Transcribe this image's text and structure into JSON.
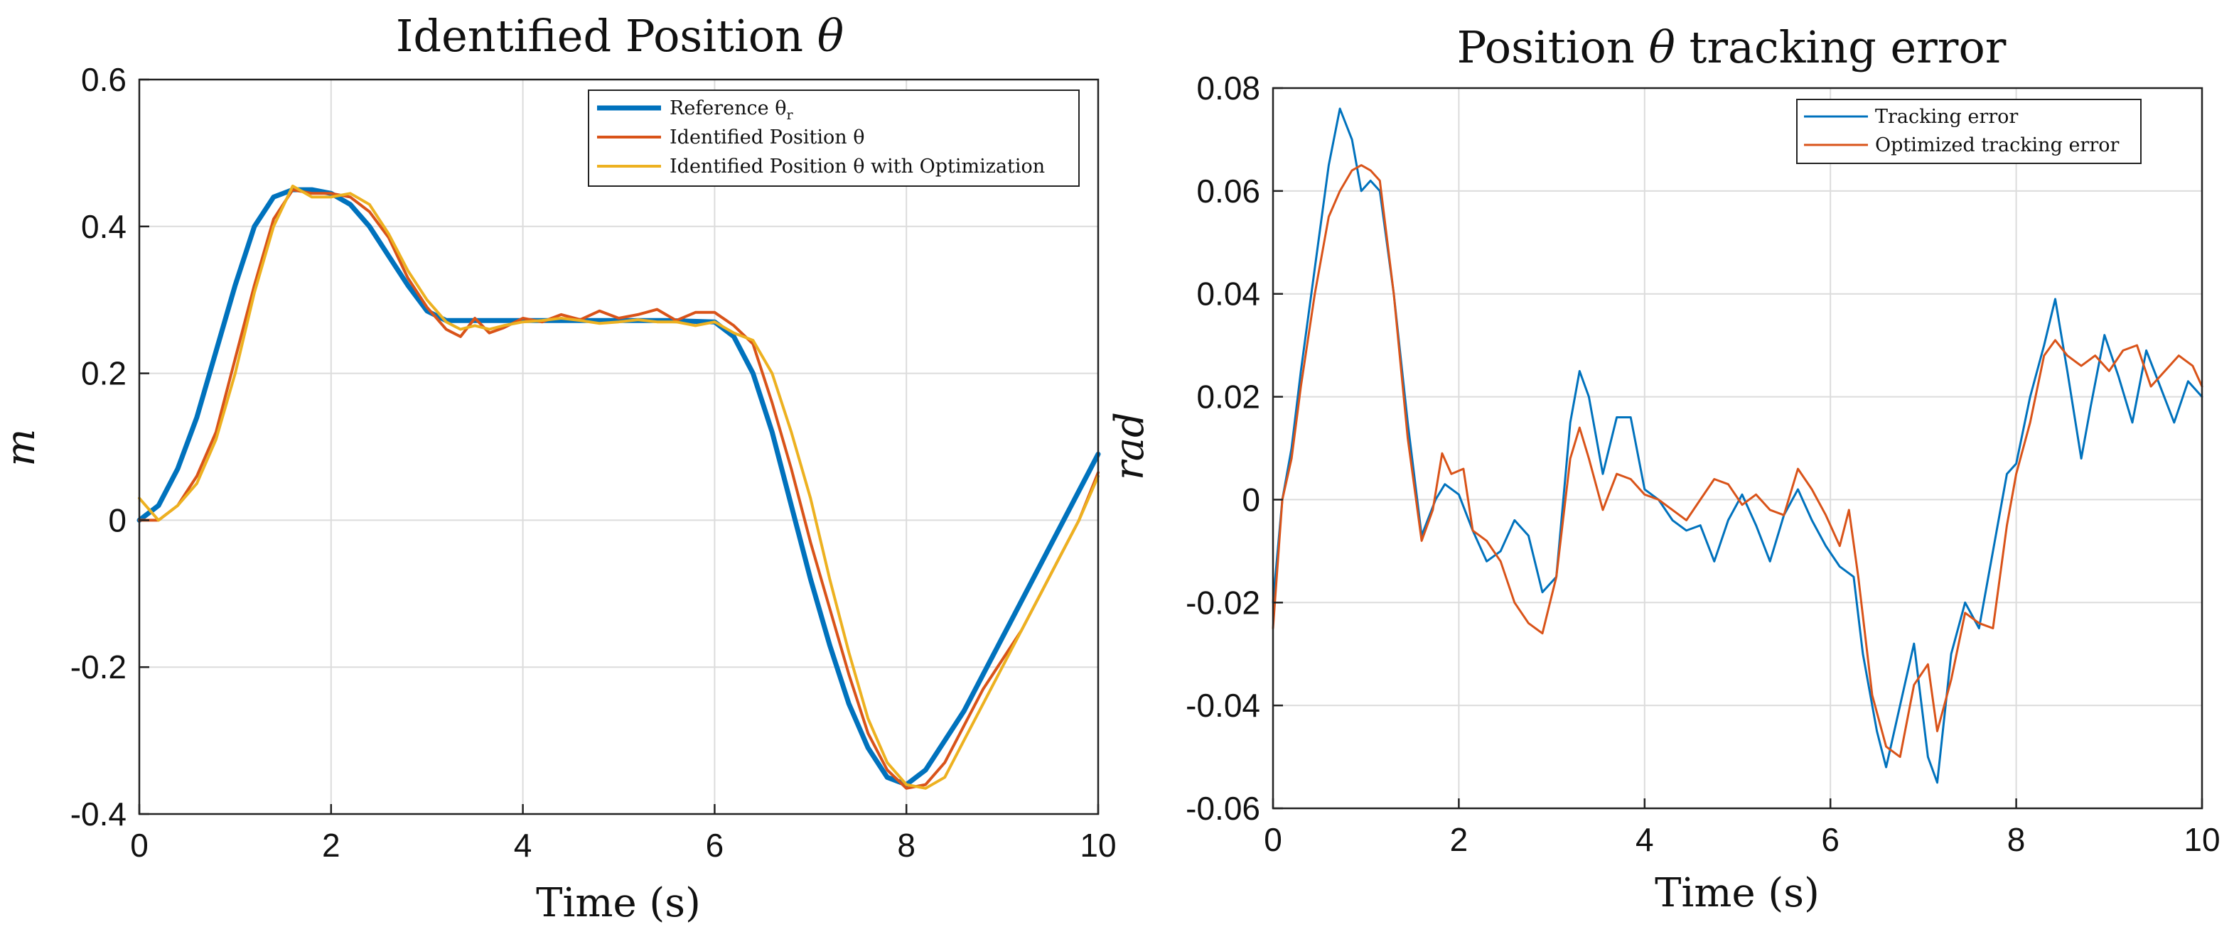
{
  "chart_data": [
    {
      "type": "line",
      "title": "Identified Position θ",
      "title_plain": "Identified Position ",
      "title_symbol": "θ",
      "xlabel": "Time (s)",
      "ylabel": "m",
      "xlim": [
        0,
        10
      ],
      "ylim": [
        -0.4,
        0.6
      ],
      "xticks": [
        "0",
        "2",
        "4",
        "6",
        "8",
        "10"
      ],
      "yticks": [
        "-0.4",
        "-0.2",
        "0",
        "0.2",
        "0.4",
        "0.6"
      ],
      "grid": true,
      "legend_position": "top-right",
      "series": [
        {
          "name": "Reference θr",
          "legend_label": "Reference θ",
          "legend_sub": "r",
          "color": "#0072BD",
          "x": [
            0,
            0.2,
            0.4,
            0.6,
            0.8,
            1.0,
            1.2,
            1.4,
            1.6,
            1.8,
            2.0,
            2.2,
            2.4,
            2.6,
            2.8,
            3.0,
            3.2,
            3.5,
            4.0,
            4.5,
            5.0,
            5.5,
            6.0,
            6.2,
            6.4,
            6.6,
            6.8,
            7.0,
            7.2,
            7.4,
            7.6,
            7.8,
            8.0,
            8.2,
            8.4,
            8.6,
            8.8,
            9.0,
            9.2,
            9.4,
            9.6,
            9.8,
            10.0
          ],
          "y": [
            0,
            0.02,
            0.07,
            0.14,
            0.23,
            0.32,
            0.4,
            0.44,
            0.45,
            0.45,
            0.445,
            0.43,
            0.4,
            0.36,
            0.32,
            0.285,
            0.272,
            0.272,
            0.272,
            0.272,
            0.272,
            0.272,
            0.27,
            0.25,
            0.2,
            0.12,
            0.02,
            -0.08,
            -0.17,
            -0.25,
            -0.31,
            -0.35,
            -0.36,
            -0.34,
            -0.3,
            -0.26,
            -0.21,
            -0.16,
            -0.11,
            -0.06,
            -0.01,
            0.04,
            0.09
          ]
        },
        {
          "name": "Identified Position θ",
          "legend_label": "Identified Position θ",
          "color": "#D95319",
          "x": [
            0,
            0.2,
            0.4,
            0.6,
            0.8,
            1.0,
            1.2,
            1.4,
            1.6,
            1.8,
            2.0,
            2.2,
            2.4,
            2.6,
            2.8,
            3.0,
            3.2,
            3.35,
            3.5,
            3.65,
            3.8,
            4.0,
            4.2,
            4.4,
            4.6,
            4.8,
            5.0,
            5.2,
            5.4,
            5.6,
            5.8,
            6.0,
            6.2,
            6.4,
            6.6,
            6.8,
            7.0,
            7.2,
            7.4,
            7.6,
            7.8,
            8.0,
            8.2,
            8.4,
            8.6,
            8.8,
            9.0,
            9.2,
            9.4,
            9.6,
            9.8,
            10.0
          ],
          "y": [
            0,
            0.0,
            0.02,
            0.06,
            0.12,
            0.22,
            0.32,
            0.41,
            0.45,
            0.445,
            0.445,
            0.44,
            0.42,
            0.385,
            0.33,
            0.29,
            0.26,
            0.25,
            0.275,
            0.255,
            0.262,
            0.275,
            0.27,
            0.28,
            0.273,
            0.285,
            0.275,
            0.28,
            0.287,
            0.272,
            0.283,
            0.283,
            0.265,
            0.24,
            0.16,
            0.07,
            -0.03,
            -0.12,
            -0.21,
            -0.29,
            -0.34,
            -0.365,
            -0.36,
            -0.33,
            -0.28,
            -0.23,
            -0.19,
            -0.15,
            -0.1,
            -0.05,
            0.0,
            0.065
          ]
        },
        {
          "name": "Identified Position θ with Optimization",
          "legend_label": "Identified Position θ with Optimization",
          "color": "#EDB120",
          "x": [
            0,
            0.2,
            0.4,
            0.6,
            0.8,
            1.0,
            1.2,
            1.4,
            1.6,
            1.8,
            2.0,
            2.2,
            2.4,
            2.6,
            2.8,
            3.0,
            3.2,
            3.35,
            3.5,
            3.65,
            3.8,
            4.0,
            4.2,
            4.4,
            4.6,
            4.8,
            5.0,
            5.2,
            5.4,
            5.6,
            5.8,
            6.0,
            6.2,
            6.4,
            6.6,
            6.8,
            7.0,
            7.2,
            7.4,
            7.6,
            7.8,
            8.0,
            8.2,
            8.4,
            8.6,
            8.8,
            9.0,
            9.2,
            9.4,
            9.6,
            9.8,
            10.0
          ],
          "y": [
            0.03,
            0.0,
            0.02,
            0.05,
            0.11,
            0.2,
            0.31,
            0.4,
            0.455,
            0.44,
            0.44,
            0.445,
            0.43,
            0.39,
            0.34,
            0.3,
            0.27,
            0.26,
            0.265,
            0.26,
            0.265,
            0.27,
            0.272,
            0.275,
            0.272,
            0.268,
            0.27,
            0.273,
            0.27,
            0.27,
            0.265,
            0.27,
            0.255,
            0.245,
            0.2,
            0.12,
            0.03,
            -0.08,
            -0.18,
            -0.27,
            -0.33,
            -0.36,
            -0.365,
            -0.35,
            -0.3,
            -0.25,
            -0.2,
            -0.15,
            -0.1,
            -0.05,
            0.0,
            0.06
          ]
        }
      ]
    },
    {
      "type": "line",
      "title": "Position θ tracking error",
      "title_pre": "Position ",
      "title_symbol": "θ",
      "title_post": " tracking error",
      "xlabel": "Time (s)",
      "ylabel": "rad",
      "xlim": [
        0,
        10
      ],
      "ylim": [
        -0.06,
        0.08
      ],
      "xticks": [
        "0",
        "2",
        "4",
        "6",
        "8",
        "10"
      ],
      "yticks": [
        "-0.06",
        "-0.04",
        "-0.02",
        "0",
        "0.02",
        "0.04",
        "0.06",
        "0.08"
      ],
      "grid": true,
      "legend_position": "top-right",
      "series": [
        {
          "name": "Tracking error",
          "color": "#0072BD",
          "x": [
            0,
            0.1,
            0.2,
            0.3,
            0.45,
            0.6,
            0.72,
            0.85,
            0.95,
            1.05,
            1.15,
            1.3,
            1.45,
            1.6,
            1.75,
            1.85,
            2.0,
            2.15,
            2.3,
            2.45,
            2.6,
            2.75,
            2.9,
            3.05,
            3.2,
            3.3,
            3.4,
            3.55,
            3.7,
            3.85,
            4.0,
            4.15,
            4.3,
            4.45,
            4.6,
            4.75,
            4.9,
            5.05,
            5.2,
            5.35,
            5.5,
            5.65,
            5.8,
            5.95,
            6.1,
            6.25,
            6.35,
            6.5,
            6.6,
            6.75,
            6.9,
            7.05,
            7.15,
            7.3,
            7.45,
            7.6,
            7.75,
            7.9,
            8.0,
            8.15,
            8.3,
            8.42,
            8.55,
            8.7,
            8.8,
            8.95,
            9.1,
            9.25,
            9.4,
            9.55,
            9.7,
            9.85,
            10.0
          ],
          "y": [
            -0.02,
            0.0,
            0.01,
            0.025,
            0.045,
            0.065,
            0.076,
            0.07,
            0.06,
            0.062,
            0.06,
            0.04,
            0.015,
            -0.007,
            0.0,
            0.003,
            0.001,
            -0.006,
            -0.012,
            -0.01,
            -0.004,
            -0.007,
            -0.018,
            -0.015,
            0.015,
            0.025,
            0.02,
            0.005,
            0.016,
            0.016,
            0.002,
            0.0,
            -0.004,
            -0.006,
            -0.005,
            -0.012,
            -0.004,
            0.001,
            -0.005,
            -0.012,
            -0.003,
            0.002,
            -0.004,
            -0.009,
            -0.013,
            -0.015,
            -0.03,
            -0.045,
            -0.052,
            -0.04,
            -0.028,
            -0.05,
            -0.055,
            -0.03,
            -0.02,
            -0.025,
            -0.01,
            0.005,
            0.007,
            0.02,
            0.03,
            0.039,
            0.025,
            0.008,
            0.018,
            0.032,
            0.024,
            0.015,
            0.029,
            0.022,
            0.015,
            0.023,
            0.02
          ]
        },
        {
          "name": "Optimized tracking error",
          "color": "#D95319",
          "x": [
            0,
            0.1,
            0.2,
            0.3,
            0.45,
            0.6,
            0.72,
            0.85,
            0.95,
            1.05,
            1.15,
            1.3,
            1.45,
            1.6,
            1.72,
            1.82,
            1.92,
            2.05,
            2.15,
            2.3,
            2.45,
            2.6,
            2.75,
            2.9,
            3.05,
            3.2,
            3.3,
            3.4,
            3.55,
            3.7,
            3.85,
            4.0,
            4.15,
            4.3,
            4.45,
            4.6,
            4.75,
            4.9,
            5.05,
            5.2,
            5.35,
            5.5,
            5.65,
            5.8,
            5.95,
            6.1,
            6.2,
            6.3,
            6.45,
            6.6,
            6.75,
            6.9,
            7.05,
            7.15,
            7.3,
            7.45,
            7.6,
            7.75,
            7.9,
            8.0,
            8.15,
            8.3,
            8.42,
            8.55,
            8.7,
            8.85,
            9.0,
            9.15,
            9.3,
            9.45,
            9.6,
            9.75,
            9.9,
            10.0
          ],
          "y": [
            -0.025,
            0.0,
            0.008,
            0.022,
            0.04,
            0.055,
            0.06,
            0.064,
            0.065,
            0.064,
            0.062,
            0.04,
            0.012,
            -0.008,
            -0.002,
            0.009,
            0.005,
            0.006,
            -0.006,
            -0.008,
            -0.012,
            -0.02,
            -0.024,
            -0.026,
            -0.015,
            0.008,
            0.014,
            0.008,
            -0.002,
            0.005,
            0.004,
            0.001,
            0.0,
            -0.002,
            -0.004,
            0.0,
            0.004,
            0.003,
            -0.001,
            0.001,
            -0.002,
            -0.003,
            0.006,
            0.002,
            -0.003,
            -0.009,
            -0.002,
            -0.015,
            -0.038,
            -0.048,
            -0.05,
            -0.036,
            -0.032,
            -0.045,
            -0.035,
            -0.022,
            -0.024,
            -0.025,
            -0.005,
            0.005,
            0.015,
            0.028,
            0.031,
            0.028,
            0.026,
            0.028,
            0.025,
            0.029,
            0.03,
            0.022,
            0.025,
            0.028,
            0.026,
            0.022
          ]
        }
      ]
    }
  ]
}
